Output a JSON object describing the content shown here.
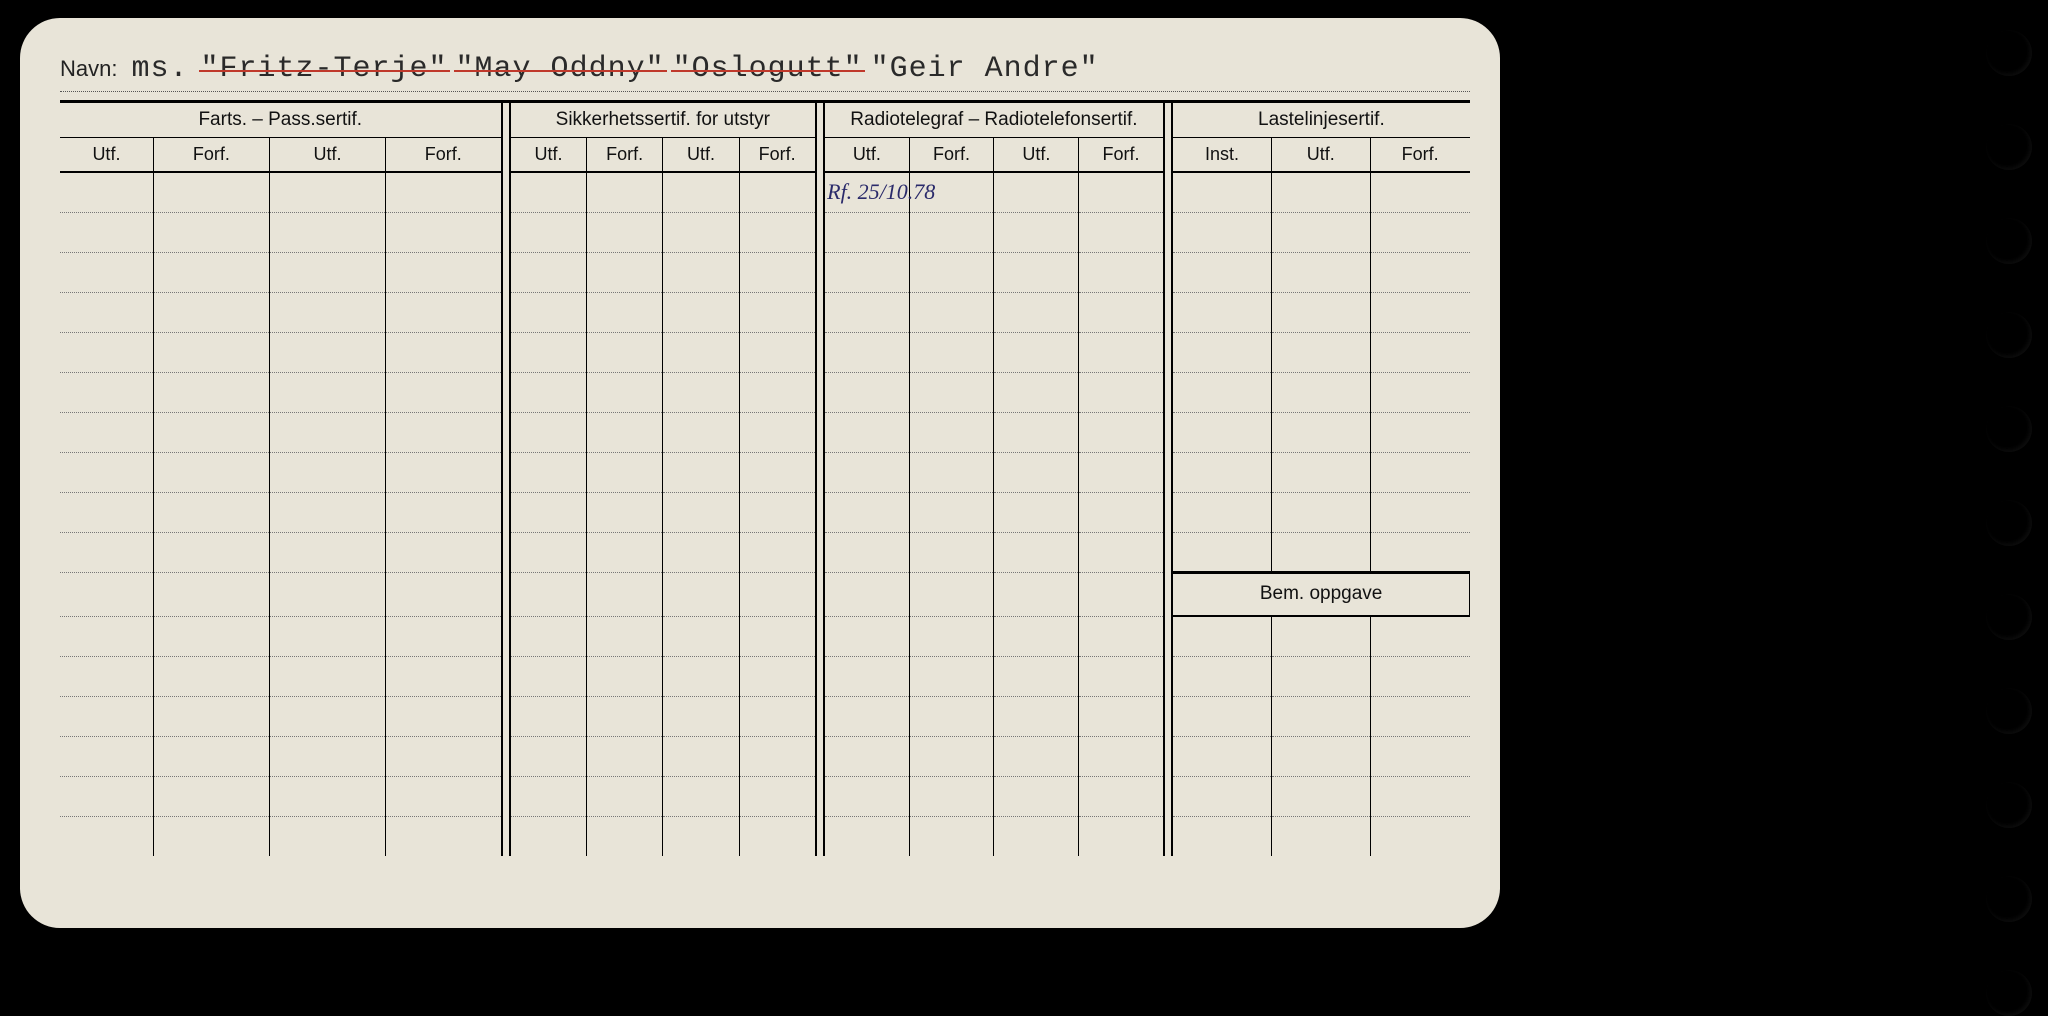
{
  "navn_label": "Navn:",
  "navn_prefix": "ms.",
  "names": [
    {
      "text": "\"Fritz-Terje\"",
      "struck": true
    },
    {
      "text": "\"May Oddny\"",
      "struck": true
    },
    {
      "text": "\"Oslogutt\"",
      "struck": true
    },
    {
      "text": "\"Geir Andre\"",
      "struck": false
    }
  ],
  "groups": {
    "farts": "Farts. – Pass.sertif.",
    "sikker": "Sikkerhetssertif. for utstyr",
    "radio": "Radiotelegraf – Radiotelefonsertif.",
    "laste": "Lastelinjesertif."
  },
  "subheaders": {
    "utf": "Utf.",
    "forf": "Forf.",
    "inst": "Inst."
  },
  "bem_label": "Bem. oppgave",
  "row_count_total": 17,
  "bem_divider_after_row": 10,
  "entries": {
    "radio_utf_row1": "Rf. 25/10.78"
  },
  "colors": {
    "page_bg": "#000000",
    "card_bg": "#e8e4d8",
    "ink": "#111111",
    "typed": "#2a2a2a",
    "strike": "#c0392b",
    "hand_ink": "#2a2a6a",
    "dotted": "#777777"
  },
  "hole_count": 11
}
